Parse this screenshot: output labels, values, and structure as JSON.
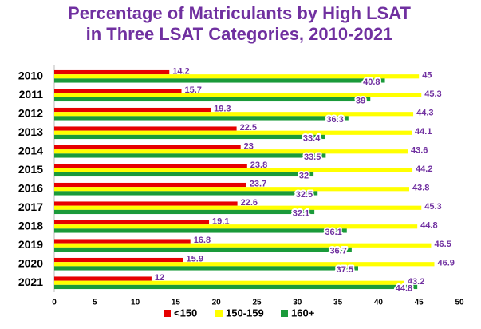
{
  "chart_data": {
    "type": "hbar",
    "title": [
      "Percentage of Matriculants by High LSAT",
      "in Three LSAT Categories, 2010-2021"
    ],
    "categories": [
      "2010",
      "2011",
      "2012",
      "2013",
      "2014",
      "2015",
      "2016",
      "2017",
      "2018",
      "2019",
      "2020",
      "2021"
    ],
    "series": [
      {
        "name": "<150",
        "color": "#e60000",
        "values": [
          14.2,
          15.7,
          19.3,
          22.5,
          23,
          23.8,
          23.7,
          22.6,
          19.1,
          16.8,
          15.9,
          12
        ]
      },
      {
        "name": "150-159",
        "color": "#ffff00",
        "values": [
          45,
          45.3,
          44.3,
          44.1,
          43.6,
          44.2,
          43.8,
          45.3,
          44.8,
          46.5,
          46.9,
          43.2
        ]
      },
      {
        "name": "160+",
        "color": "#1a9a3a",
        "values": [
          40.8,
          39,
          36.3,
          33.4,
          33.5,
          32,
          32.5,
          32.1,
          36.1,
          36.7,
          37.5,
          44.8
        ]
      }
    ],
    "xlim": [
      0,
      50
    ],
    "xticks": [
      0,
      5,
      10,
      15,
      20,
      25,
      30,
      35,
      40,
      45,
      50
    ],
    "legend": "bottom",
    "grid": false
  }
}
